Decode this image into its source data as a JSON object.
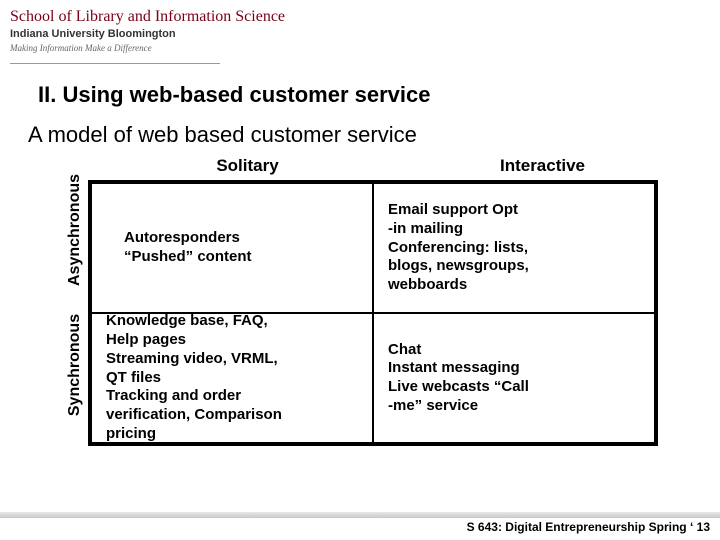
{
  "header": {
    "school": "School of Library and Information Science",
    "university": "Indiana University Bloomington",
    "tagline": "Making Information Make a Difference"
  },
  "section_heading": "II. Using web-based customer service",
  "subtitle": "A model of web based customer service",
  "matrix": {
    "col_headers": [
      "Solitary",
      "Interactive"
    ],
    "row_headers": [
      "Asynchronous",
      "Synchronous"
    ],
    "cells": {
      "async_solitary": "Autoresponders\n“Pushed” content",
      "async_interactive": "Email support        Opt\n-in mailing\nConferencing: lists,\nblogs, newsgroups,\nwebboards",
      "sync_solitary": "Knowledge base, FAQ,\nHelp pages\nStreaming video, VRML,\nQT files\nTracking and order\nverification, Comparison\npricing",
      "sync_interactive": "Chat\nInstant messaging\nLive webcasts       “Call\n-me” service"
    }
  },
  "footer": "S 643: Digital Entrepreneurship Spring ‘ 13",
  "colors": {
    "crimson": "#7a0019",
    "text": "#000000",
    "background": "#ffffff"
  }
}
